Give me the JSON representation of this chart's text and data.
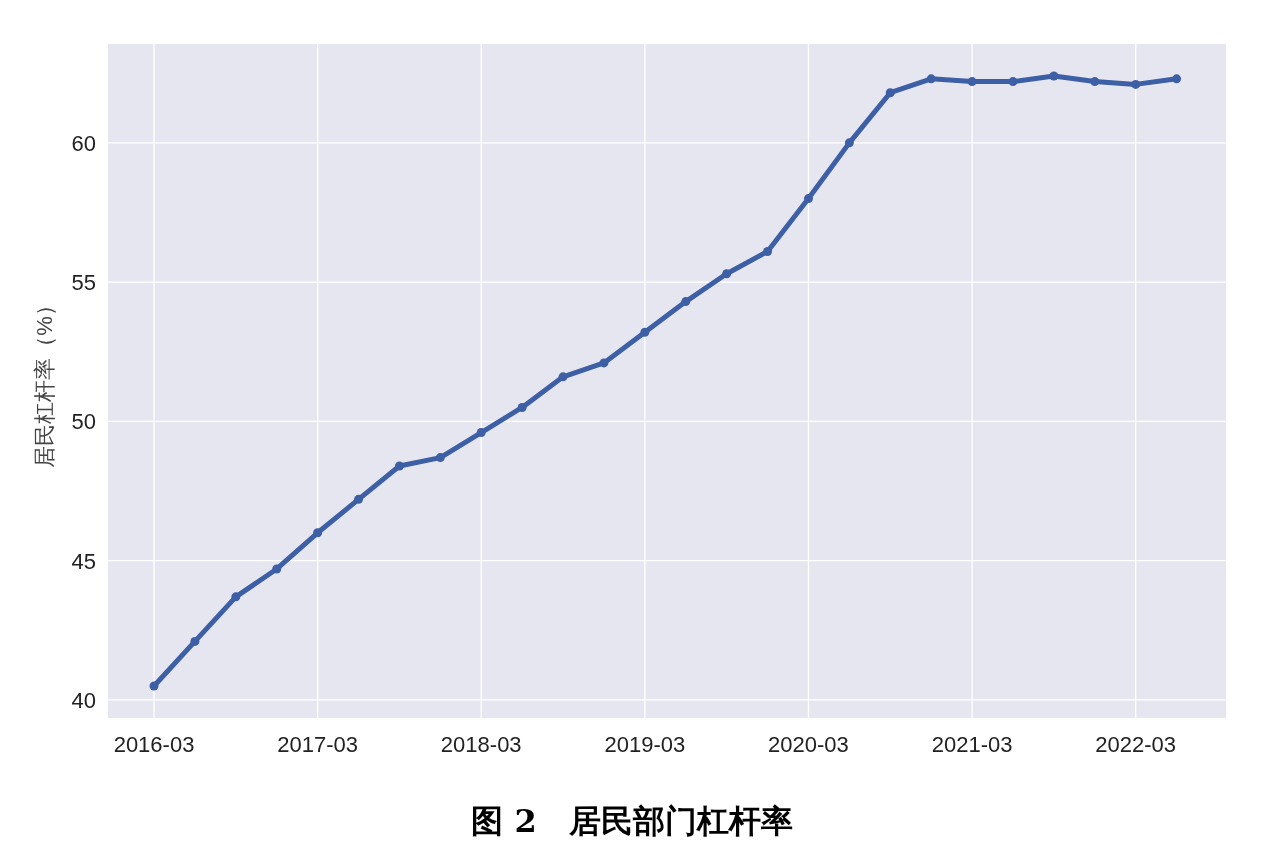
{
  "chart_data": {
    "type": "line",
    "title": "图 2　居民部门杠杆率",
    "ylabel": "居民杠杆率（%）",
    "x": [
      "2016-03",
      "2016-06",
      "2016-09",
      "2016-12",
      "2017-03",
      "2017-06",
      "2017-09",
      "2017-12",
      "2018-03",
      "2018-06",
      "2018-09",
      "2018-12",
      "2019-03",
      "2019-06",
      "2019-09",
      "2019-12",
      "2020-03",
      "2020-06",
      "2020-09",
      "2020-12",
      "2021-03",
      "2021-06",
      "2021-09",
      "2021-12",
      "2022-03",
      "2022-06"
    ],
    "series": [
      {
        "color": "#3d5fa6",
        "values": [
          40.5,
          42.1,
          43.7,
          44.7,
          46.0,
          47.2,
          48.4,
          48.7,
          49.6,
          50.5,
          51.6,
          52.1,
          53.2,
          54.3,
          55.3,
          56.1,
          58.0,
          60.0,
          61.8,
          62.3,
          62.2,
          62.2,
          62.4,
          62.2,
          62.1,
          62.3
        ]
      }
    ],
    "xlim": [
      "2015-11-20",
      "2022-09-20"
    ],
    "xticks": [
      "2016-03",
      "2017-03",
      "2018-03",
      "2019-03",
      "2020-03",
      "2021-03",
      "2022-03"
    ],
    "ylim": [
      39.35,
      63.55
    ],
    "yticks": [
      40,
      45,
      50,
      55,
      60
    ],
    "grid": true,
    "marker": "circle",
    "line_style": "solid"
  }
}
